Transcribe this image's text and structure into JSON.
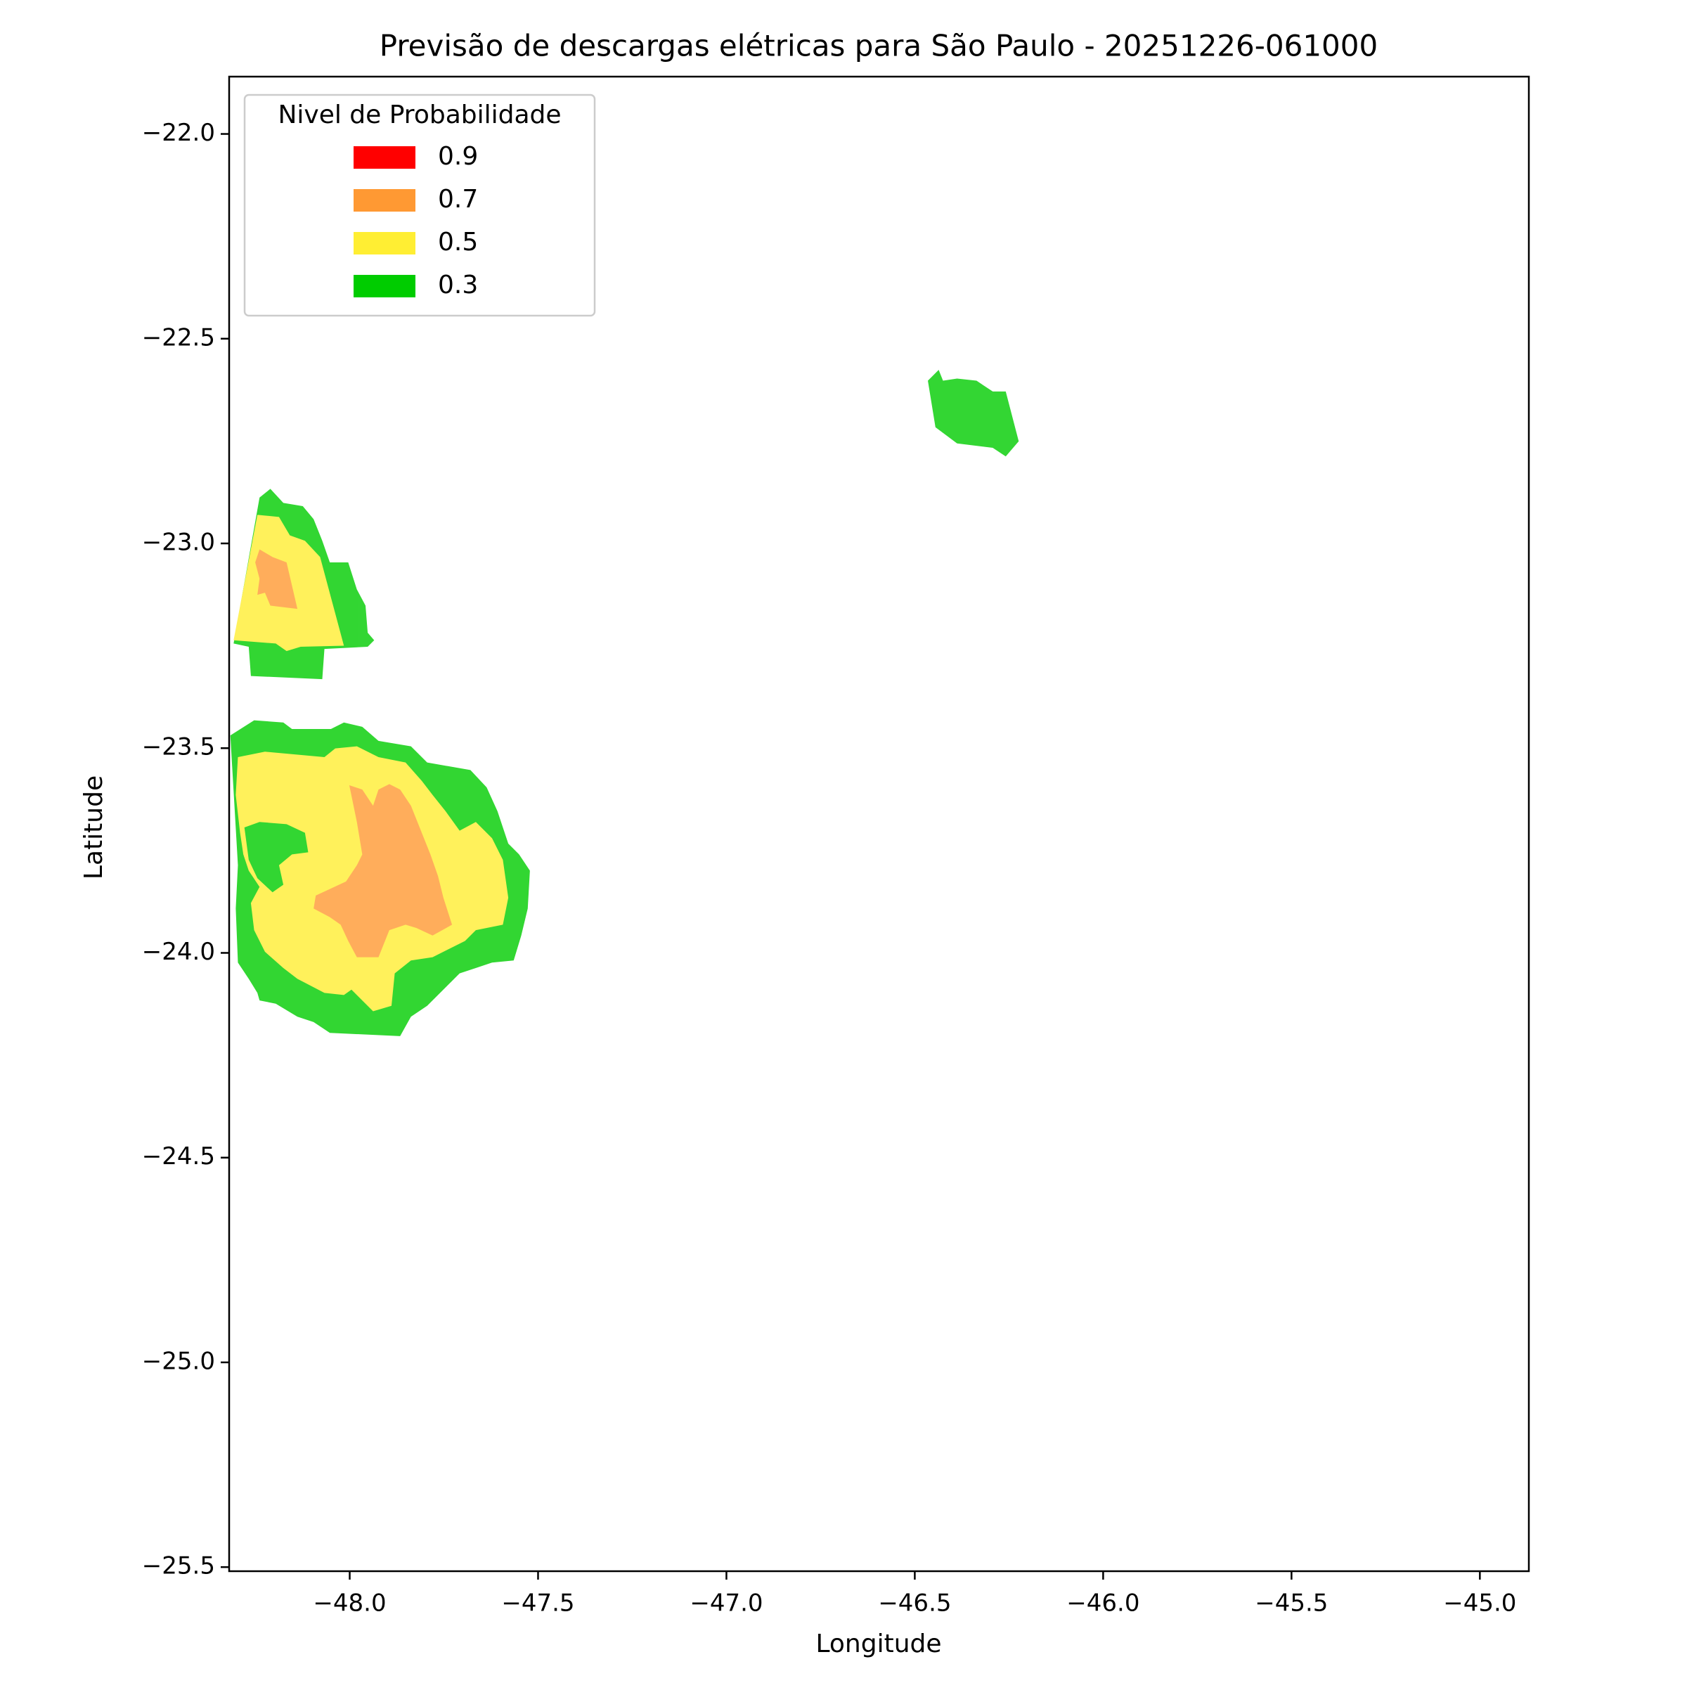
{
  "chart_data": {
    "type": "contour",
    "title": "Previsão de descargas elétricas para São Paulo - 20251226-061000",
    "xlabel": "Longitude",
    "ylabel": "Latitude",
    "xlim": [
      -48.32,
      -44.87
    ],
    "ylim": [
      -25.51,
      -21.86
    ],
    "xticks": [
      {
        "value": -48,
        "label": "−48.0"
      },
      {
        "value": -47.5,
        "label": "−47.5"
      },
      {
        "value": -47,
        "label": "−47.0"
      },
      {
        "value": -46.5,
        "label": "−46.5"
      },
      {
        "value": -46,
        "label": "−46.0"
      },
      {
        "value": -45.5,
        "label": "−45.5"
      },
      {
        "value": -45,
        "label": "−45.0"
      }
    ],
    "yticks": [
      {
        "value": -22,
        "label": "−22.0"
      },
      {
        "value": -22.5,
        "label": "−22.5"
      },
      {
        "value": -23,
        "label": "−23.0"
      },
      {
        "value": -23.5,
        "label": "−23.5"
      },
      {
        "value": -24,
        "label": "−24.0"
      },
      {
        "value": -24.5,
        "label": "−24.5"
      },
      {
        "value": -25,
        "label": "−25.0"
      },
      {
        "value": -25.5,
        "label": "−25.5"
      }
    ],
    "legend_title": "Nivel de Probabilidade",
    "legend_position": "upper left",
    "series": [
      {
        "name": "0.9",
        "color": "#ff0000"
      },
      {
        "name": "0.7",
        "color": "#ff9933"
      },
      {
        "name": "0.5",
        "color": "#ffee33"
      },
      {
        "name": "0.3",
        "color": "#00cc00"
      }
    ]
  }
}
